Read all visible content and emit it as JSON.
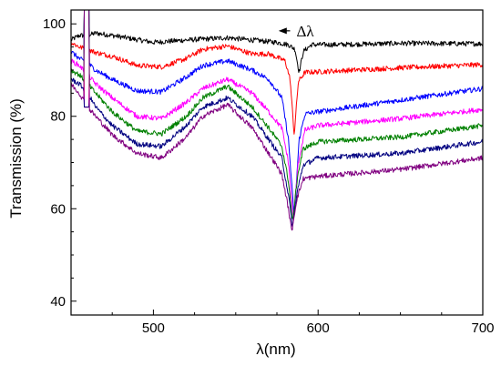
{
  "chart_data": {
    "type": "line",
    "xlabel": "λ(nm)",
    "ylabel": "Transmission (%)",
    "xlim": [
      450,
      700
    ],
    "ylim": [
      37,
      103
    ],
    "xticks": [
      500,
      600,
      700
    ],
    "yticks": [
      40,
      60,
      80,
      100
    ],
    "grid": false,
    "legend": "none",
    "annotation": {
      "text": "Δλ",
      "arrow_from_x": 583,
      "arrow_to_x": 576,
      "y": 98.5
    },
    "series": [
      {
        "color": "#000000",
        "x": [
          450,
          455,
          460,
          465,
          475,
          500,
          520,
          545,
          560,
          575,
          582,
          586,
          588.5,
          591,
          596,
          610,
          650,
          700
        ],
        "y": [
          96.5,
          97.5,
          97.5,
          98,
          97.5,
          96,
          96.5,
          97,
          96.5,
          96,
          95.5,
          94.5,
          89.5,
          94,
          95.5,
          95.5,
          95.8,
          95.7
        ]
      },
      {
        "color": "#ff0000",
        "x": [
          450,
          455,
          460,
          465,
          475,
          490,
          505,
          520,
          530,
          545,
          560,
          570,
          580,
          583,
          585.5,
          588,
          592,
          610,
          650,
          700
        ],
        "y": [
          96,
          95,
          94.5,
          93.8,
          93,
          91,
          90.7,
          92.5,
          94.5,
          95.2,
          93.5,
          93.5,
          92,
          88,
          76,
          87.5,
          89.5,
          89.8,
          90.5,
          91.2
        ]
      },
      {
        "color": "#0000ff",
        "x": [
          450,
          455,
          460,
          465,
          475,
          490,
          505,
          520,
          530,
          545,
          560,
          570,
          578,
          582,
          585.5,
          588.5,
          592,
          600,
          650,
          700
        ],
        "y": [
          94,
          92.5,
          91.5,
          90,
          88,
          85.5,
          85.3,
          88.5,
          91,
          92,
          90,
          88,
          84,
          75,
          58,
          75,
          80.5,
          81,
          83.5,
          86
        ]
      },
      {
        "color": "#ff00ff",
        "x": [
          450,
          455,
          460,
          465,
          475,
          490,
          505,
          520,
          530,
          545,
          560,
          570,
          578,
          582,
          585,
          588,
          592,
          600,
          650,
          700
        ],
        "y": [
          92,
          91,
          89,
          87,
          84,
          80,
          79.5,
          83,
          86,
          88,
          85,
          81,
          77.5,
          70,
          57.5,
          70,
          77,
          78,
          79.5,
          81.5
        ]
      },
      {
        "color": "#008000",
        "x": [
          450,
          455,
          460,
          465,
          475,
          490,
          505,
          520,
          530,
          545,
          560,
          570,
          578,
          582,
          584.5,
          587.5,
          591,
          600,
          650,
          700
        ],
        "y": [
          90,
          89,
          87,
          85,
          81,
          76.8,
          76.2,
          80,
          84,
          86.5,
          82,
          77.5,
          73.5,
          66,
          57,
          67,
          73,
          74.5,
          75.5,
          78
        ]
      },
      {
        "color": "#000080",
        "x": [
          450,
          455,
          460,
          465,
          475,
          490,
          505,
          520,
          530,
          545,
          560,
          570,
          578,
          582,
          584.5,
          587.5,
          591,
          600,
          650,
          700
        ],
        "y": [
          88,
          87,
          85,
          82,
          78,
          74,
          73.5,
          78,
          82,
          84,
          80,
          75,
          71,
          63,
          56,
          64,
          69.5,
          71,
          72,
          74.5
        ]
      },
      {
        "color": "#800080",
        "x": [
          450,
          455,
          460,
          465,
          475,
          490,
          505,
          520,
          530,
          545,
          560,
          570,
          578,
          582,
          584,
          587,
          591,
          600,
          650,
          700
        ],
        "y": [
          87,
          85,
          82,
          80,
          76,
          72,
          71,
          75.5,
          80,
          82.5,
          77.5,
          72,
          67.5,
          60,
          55,
          62,
          66.5,
          67,
          68.5,
          71
        ]
      }
    ],
    "spike_x": [
      458,
      461
    ]
  }
}
